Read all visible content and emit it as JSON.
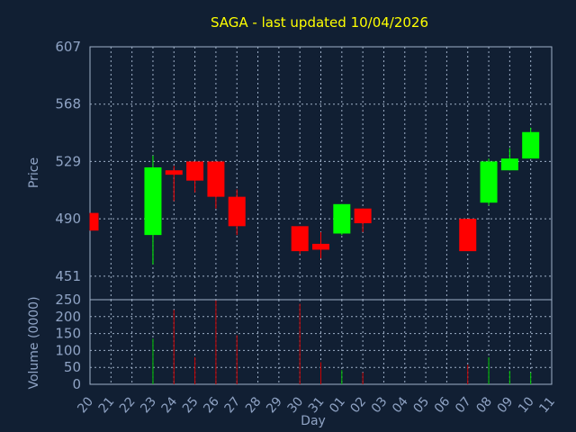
{
  "chart_data": {
    "type": "candlestick",
    "title": "SAGA - last updated 10/04/2026",
    "price_panel": {
      "ylabel": "Price",
      "yticks": [
        451,
        490,
        529,
        568,
        607
      ],
      "ylim": [
        435,
        607
      ],
      "grid": true
    },
    "volume_panel": {
      "ylabel": "Volume (0000)",
      "yticks": [
        0,
        50,
        100,
        150,
        200,
        250
      ],
      "ylim": [
        0,
        250
      ],
      "grid": true
    },
    "xlabel": "Day",
    "day_labels": [
      "20",
      "21",
      "22",
      "23",
      "24",
      "25",
      "26",
      "27",
      "28",
      "29",
      "30",
      "31",
      "01",
      "02",
      "03",
      "04",
      "05",
      "06",
      "07",
      "08",
      "09",
      "10",
      "11"
    ],
    "candles": [
      {
        "day": "20",
        "open": 494,
        "high": 494,
        "low": 482,
        "close": 482,
        "volume": 0
      },
      {
        "day": "23",
        "open": 479,
        "high": 533,
        "low": 459,
        "close": 525,
        "volume": 135
      },
      {
        "day": "24",
        "open": 523,
        "high": 526,
        "low": 502,
        "close": 520,
        "volume": 220
      },
      {
        "day": "25",
        "open": 529,
        "high": 529,
        "low": 508,
        "close": 516,
        "volume": 80
      },
      {
        "day": "26",
        "open": 529,
        "high": 529,
        "low": 497,
        "close": 505,
        "volume": 248
      },
      {
        "day": "27",
        "open": 505,
        "high": 510,
        "low": 479,
        "close": 485,
        "volume": 145
      },
      {
        "day": "30",
        "open": 485,
        "high": 485,
        "low": 466,
        "close": 468,
        "volume": 238
      },
      {
        "day": "31",
        "open": 473,
        "high": 481,
        "low": 463,
        "close": 469,
        "volume": 65
      },
      {
        "day": "01",
        "open": 480,
        "high": 500,
        "low": 479,
        "close": 500,
        "volume": 42
      },
      {
        "day": "02",
        "open": 497,
        "high": 497,
        "low": 481,
        "close": 487,
        "volume": 35
      },
      {
        "day": "07",
        "open": 490,
        "high": 490,
        "low": 468,
        "close": 468,
        "volume": 58
      },
      {
        "day": "08",
        "open": 501,
        "high": 531,
        "low": 499,
        "close": 529,
        "volume": 80
      },
      {
        "day": "09",
        "open": 523,
        "high": 538,
        "low": 523,
        "close": 531,
        "volume": 40
      },
      {
        "day": "10",
        "open": 531,
        "high": 552,
        "low": 531,
        "close": 549,
        "volume": 35
      }
    ],
    "colors": {
      "up": "#00ff00",
      "down": "#ff0000",
      "up_volume": "#00cc00",
      "down_volume": "#cc0000",
      "background": "#111f33",
      "title": "#ffff00",
      "text": "#8fa3c4",
      "grid": "#9fb0c8"
    }
  }
}
